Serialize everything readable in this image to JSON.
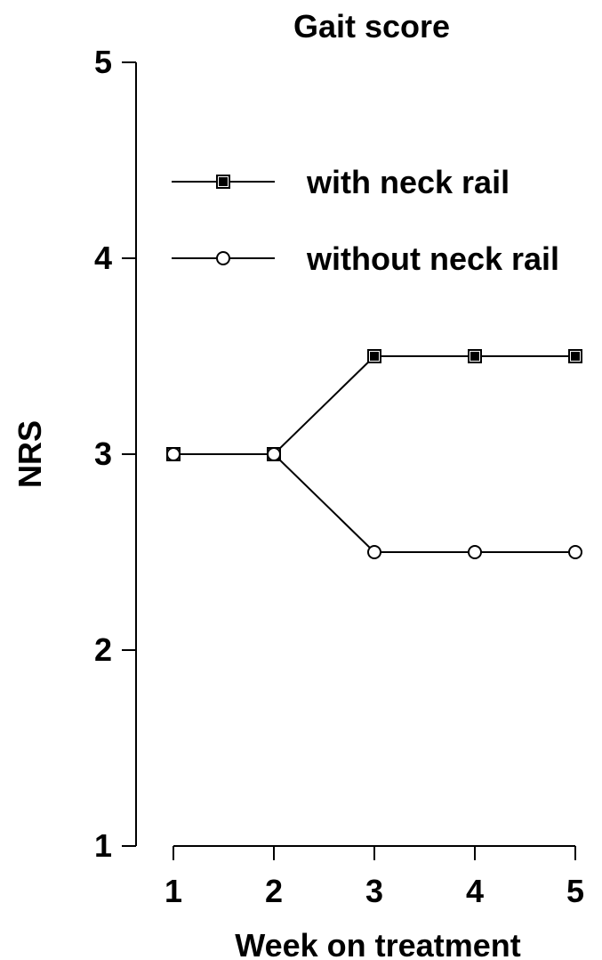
{
  "chart_data": {
    "type": "line",
    "title": "Gait score",
    "xlabel": "Week on treatment",
    "ylabel": "NRS",
    "x": [
      1,
      2,
      3,
      4,
      5
    ],
    "xlim": [
      1,
      5
    ],
    "ylim": [
      1,
      5
    ],
    "x_ticks": [
      "1",
      "2",
      "3",
      "4",
      "5"
    ],
    "y_ticks": [
      "1",
      "2",
      "3",
      "4",
      "5"
    ],
    "grid": false,
    "legend_position": "top-right",
    "series": [
      {
        "name": "with neck rail",
        "values": [
          3,
          3,
          3.5,
          3.5,
          3.5
        ],
        "marker": "square",
        "color": "#000000"
      },
      {
        "name": "without neck rail",
        "values": [
          3,
          3,
          2.5,
          2.5,
          2.5
        ],
        "marker": "circle",
        "color": "#000000"
      }
    ]
  }
}
